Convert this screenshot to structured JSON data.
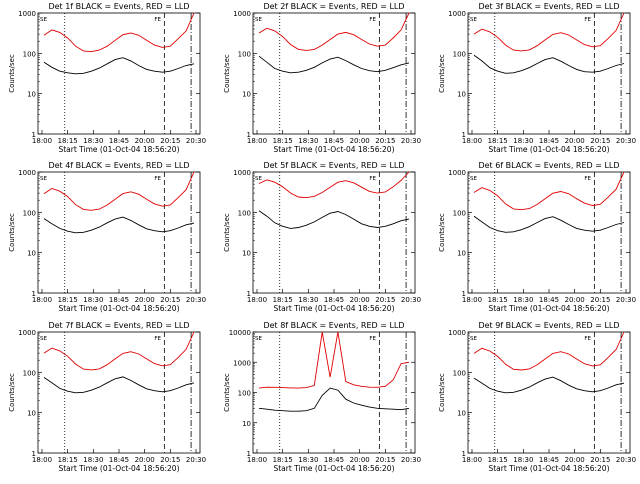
{
  "figure": {
    "xlabel": "Start Time (01-Oct-04 18:56:20)",
    "ylabel": "Counts/sec",
    "y_tick_labels": [
      "1",
      "10",
      "100",
      "1000"
    ],
    "y_tick_labels_det8": [
      "1",
      "10",
      "100",
      "1000",
      "10000"
    ],
    "x_tick_labels": [
      "18:00",
      "18:15",
      "18:30",
      "18:45",
      "20:00",
      "20:15",
      "20:30"
    ],
    "marker_labels": [
      "SE",
      "FE"
    ],
    "colors": {
      "events": "#000000",
      "lld": "#e00000",
      "axis": "#000000",
      "background": "#ffffff"
    }
  },
  "chart_data": [
    {
      "type": "line",
      "title": "Det 1f BLACK = Events, RED = LLD",
      "yscale": "log",
      "ylim": [
        1,
        1000
      ],
      "x_range": [
        0,
        150
      ],
      "series": [
        {
          "name": "BLACK = Events",
          "y": [
            60,
            45,
            36,
            33,
            31,
            32,
            36,
            43,
            55,
            70,
            78,
            65,
            50,
            40,
            36,
            34,
            36,
            42,
            50,
            55
          ]
        },
        {
          "name": "RED = LLD",
          "y": [
            280,
            380,
            330,
            240,
            150,
            115,
            110,
            120,
            150,
            210,
            290,
            320,
            280,
            210,
            160,
            140,
            150,
            230,
            360,
            1000
          ]
        }
      ]
    },
    {
      "type": "line",
      "title": "Det 2f BLACK = Events, RED = LLD",
      "yscale": "log",
      "ylim": [
        1,
        1000
      ],
      "x_range": [
        0,
        150
      ],
      "series": [
        {
          "name": "BLACK = Events",
          "y": [
            85,
            60,
            42,
            36,
            33,
            34,
            38,
            45,
            58,
            72,
            80,
            66,
            52,
            42,
            37,
            35,
            38,
            44,
            52,
            58
          ]
        },
        {
          "name": "RED = LLD",
          "y": [
            320,
            420,
            360,
            260,
            165,
            125,
            118,
            125,
            160,
            220,
            300,
            330,
            290,
            220,
            170,
            150,
            160,
            240,
            380,
            1000
          ]
        }
      ]
    },
    {
      "type": "line",
      "title": "Det 3f BLACK = Events, RED = LLD",
      "yscale": "log",
      "ylim": [
        1,
        1000
      ],
      "x_range": [
        0,
        150
      ],
      "series": [
        {
          "name": "BLACK = Events",
          "y": [
            90,
            65,
            44,
            36,
            32,
            33,
            37,
            44,
            56,
            70,
            78,
            64,
            50,
            40,
            35,
            34,
            36,
            42,
            50,
            56
          ]
        },
        {
          "name": "RED = LLD",
          "y": [
            300,
            400,
            340,
            250,
            160,
            120,
            115,
            122,
            155,
            215,
            295,
            325,
            285,
            215,
            165,
            145,
            155,
            235,
            370,
            1000
          ]
        }
      ]
    },
    {
      "type": "line",
      "title": "Det 4f BLACK = Events, RED = LLD",
      "yscale": "log",
      "ylim": [
        1,
        1000
      ],
      "x_range": [
        0,
        150
      ],
      "series": [
        {
          "name": "BLACK = Events",
          "y": [
            70,
            52,
            40,
            34,
            31,
            32,
            36,
            43,
            55,
            68,
            76,
            63,
            49,
            39,
            35,
            33,
            35,
            41,
            49,
            54
          ]
        },
        {
          "name": "RED = LLD",
          "y": [
            290,
            390,
            335,
            245,
            155,
            118,
            112,
            120,
            152,
            212,
            292,
            322,
            282,
            212,
            162,
            142,
            152,
            232,
            365,
            1000
          ]
        }
      ]
    },
    {
      "type": "line",
      "title": "Det 5f BLACK = Events, RED = LLD",
      "yscale": "log",
      "ylim": [
        1,
        1000
      ],
      "x_range": [
        0,
        150
      ],
      "series": [
        {
          "name": "BLACK = Events",
          "y": [
            110,
            80,
            55,
            45,
            40,
            42,
            48,
            58,
            75,
            95,
            105,
            88,
            68,
            52,
            45,
            42,
            45,
            52,
            62,
            68
          ]
        },
        {
          "name": "RED = LLD",
          "y": [
            520,
            640,
            560,
            430,
            300,
            240,
            230,
            250,
            310,
            420,
            560,
            610,
            540,
            420,
            330,
            300,
            320,
            430,
            620,
            1000
          ]
        }
      ]
    },
    {
      "type": "line",
      "title": "Det 6f BLACK = Events, RED = LLD",
      "yscale": "log",
      "ylim": [
        1,
        1000
      ],
      "x_range": [
        0,
        150
      ],
      "series": [
        {
          "name": "BLACK = Events",
          "y": [
            80,
            58,
            42,
            35,
            32,
            33,
            37,
            44,
            56,
            70,
            78,
            64,
            50,
            40,
            36,
            34,
            36,
            42,
            50,
            56
          ]
        },
        {
          "name": "RED = LLD",
          "y": [
            310,
            410,
            350,
            255,
            162,
            122,
            116,
            124,
            157,
            218,
            298,
            328,
            288,
            218,
            168,
            148,
            158,
            238,
            375,
            1000
          ]
        }
      ]
    },
    {
      "type": "line",
      "title": "Det 7f BLACK = Events, RED = LLD",
      "yscale": "log",
      "ylim": [
        1,
        1000
      ],
      "x_range": [
        0,
        150
      ],
      "series": [
        {
          "name": "BLACK = Events",
          "y": [
            75,
            55,
            40,
            34,
            31,
            32,
            36,
            43,
            55,
            69,
            77,
            63,
            49,
            39,
            35,
            33,
            35,
            41,
            49,
            55
          ]
        },
        {
          "name": "RED = LLD",
          "y": [
            300,
            400,
            340,
            250,
            160,
            120,
            115,
            122,
            155,
            215,
            295,
            325,
            285,
            215,
            165,
            145,
            155,
            235,
            370,
            1000
          ]
        }
      ]
    },
    {
      "type": "line",
      "title": "Det 8f BLACK = Events, RED = LLD",
      "yscale": "log",
      "ylim": [
        1,
        10000
      ],
      "x_range": [
        0,
        150
      ],
      "series": [
        {
          "name": "BLACK = Events",
          "y": [
            30,
            28,
            26,
            25,
            24,
            24,
            25,
            30,
            80,
            140,
            120,
            60,
            45,
            38,
            33,
            30,
            29,
            28,
            27,
            30
          ]
        },
        {
          "name": "RED = LLD",
          "y": [
            140,
            150,
            148,
            145,
            142,
            140,
            145,
            170,
            10000,
            320,
            10000,
            230,
            180,
            160,
            150,
            148,
            160,
            260,
            900,
            1000
          ]
        }
      ]
    },
    {
      "type": "line",
      "title": "Det 9f BLACK = Events, RED = LLD",
      "yscale": "log",
      "ylim": [
        1,
        1000
      ],
      "x_range": [
        0,
        150
      ],
      "series": [
        {
          "name": "BLACK = Events",
          "y": [
            72,
            54,
            40,
            34,
            31,
            32,
            36,
            43,
            55,
            68,
            76,
            62,
            48,
            39,
            35,
            33,
            35,
            41,
            49,
            54
          ]
        },
        {
          "name": "RED = LLD",
          "y": [
            295,
            395,
            338,
            248,
            158,
            119,
            114,
            121,
            154,
            214,
            294,
            324,
            284,
            214,
            164,
            144,
            154,
            234,
            368,
            1000
          ]
        }
      ]
    }
  ]
}
